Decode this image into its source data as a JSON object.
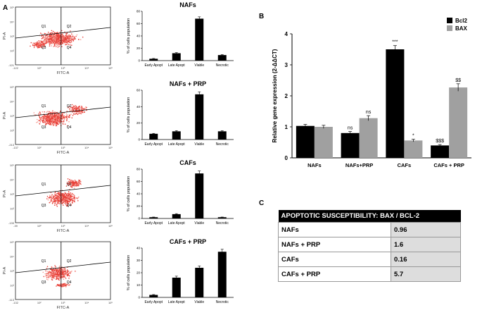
{
  "panel_labels": {
    "a": "A",
    "b": "B",
    "c": "C"
  },
  "flow_plots": [
    {
      "ylabel": "PI-A",
      "xlabel": "FITC-A",
      "quadrants": [
        "Q1",
        "Q2",
        "Q3",
        "Q4"
      ],
      "y_ticks": [
        "10⁵",
        "10⁴",
        "10³",
        "10²",
        "-121"
      ],
      "x_ticks": [
        "-122",
        "10²",
        "10³",
        "10⁴",
        "10⁵"
      ]
    },
    {
      "ylabel": "PI-A",
      "xlabel": "FITC-A",
      "quadrants": [
        "Q1",
        "Q2",
        "Q3",
        "Q4"
      ],
      "y_ticks": [
        "10⁵",
        "10⁴",
        "10³",
        "10²",
        "-213"
      ],
      "x_ticks": [
        "-137",
        "10²",
        "10³",
        "10⁴",
        "10⁵"
      ]
    },
    {
      "ylabel": "PI-A",
      "xlabel": "FITC-A",
      "quadrants": [
        "Q1",
        "Q2",
        "Q3",
        "Q4"
      ],
      "y_ticks": [
        "10⁵",
        "10⁴",
        "10³",
        "10²",
        "-139"
      ],
      "x_ticks": [
        "-39",
        "10²",
        "10³",
        "10⁴",
        "10⁵"
      ]
    },
    {
      "ylabel": "PI-A",
      "xlabel": "FITC-A",
      "quadrants": [
        "Q1",
        "Q2",
        "Q3",
        "Q4"
      ],
      "y_ticks": [
        "10⁵",
        "10⁴",
        "10³",
        "10²",
        "-113"
      ],
      "x_ticks": [
        "-132",
        "10²",
        "10³",
        "10⁴",
        "10⁵"
      ]
    }
  ],
  "chart_data": [
    {
      "type": "bar",
      "title": "NAFs",
      "ylabel": "% of cells population",
      "categories": [
        "Early Apopt",
        "Late Apopt",
        "Viable",
        "Necrotic"
      ],
      "values": [
        3,
        12,
        68,
        9
      ],
      "errors": [
        0.5,
        1,
        3,
        0.8
      ],
      "ylim": [
        0,
        80
      ],
      "yticks": [
        0,
        20,
        40,
        60,
        80
      ],
      "color": "#000000"
    },
    {
      "type": "bar",
      "title": "NAFs + PRP",
      "ylabel": "% of cells population",
      "categories": [
        "Early Apopt",
        "Late Apopt",
        "Viable",
        "Necrotic"
      ],
      "values": [
        7,
        10,
        55,
        10
      ],
      "errors": [
        0.5,
        0.8,
        3,
        0.8
      ],
      "ylim": [
        0,
        60
      ],
      "yticks": [
        0,
        20,
        40,
        60
      ],
      "color": "#000000"
    },
    {
      "type": "bar",
      "title": "CAFs",
      "ylabel": "% of cells population",
      "categories": [
        "Early Apopt",
        "Late Apopt",
        "Viable",
        "Necrotic"
      ],
      "values": [
        2,
        7,
        73,
        2
      ],
      "errors": [
        0.3,
        0.8,
        4,
        0.3
      ],
      "ylim": [
        0,
        80
      ],
      "yticks": [
        0,
        20,
        40,
        60,
        80
      ],
      "color": "#000000"
    },
    {
      "type": "bar",
      "title": "CAFs + PRP",
      "ylabel": "% of cells population",
      "categories": [
        "Early Apopt",
        "Late Apopt",
        "Viable",
        "Necrotic"
      ],
      "values": [
        2,
        16,
        24,
        37
      ],
      "errors": [
        0.3,
        1.2,
        1.5,
        2
      ],
      "ylim": [
        0,
        40
      ],
      "yticks": [
        0,
        10,
        20,
        30,
        40
      ],
      "color": "#000000"
    },
    {
      "type": "bar",
      "title": "",
      "ylabel": "Relative gene expression (2-ΔΔCT)",
      "categories": [
        "NAFs",
        "NAFs+PRP",
        "CAFs",
        "CAFs + PRP"
      ],
      "ylim": [
        0,
        4
      ],
      "yticks": [
        0,
        1,
        2,
        3,
        4
      ],
      "series": [
        {
          "name": "Bcl2",
          "color": "#000000",
          "values": [
            1.03,
            0.8,
            3.5,
            0.4
          ],
          "errors": [
            0.05,
            0.05,
            0.12,
            0.03
          ],
          "annotations": [
            "",
            "ns",
            "***",
            "$$$"
          ]
        },
        {
          "name": "BAX",
          "color": "#a0a0a0",
          "values": [
            1.0,
            1.28,
            0.56,
            2.27
          ],
          "errors": [
            0.05,
            0.08,
            0.04,
            0.12
          ],
          "annotations": [
            "",
            "ns",
            "*",
            "$$"
          ]
        }
      ],
      "legend": "top-right"
    }
  ],
  "table": {
    "header": "APOPTOTIC SUSCEPTIBILITY: BAX / BCL-2",
    "rows": [
      {
        "label": "NAFs",
        "value": "0.96"
      },
      {
        "label": "NAFs + PRP",
        "value": "1.6"
      },
      {
        "label": "CAFs",
        "value": "0.16"
      },
      {
        "label": "CAFs + PRP",
        "value": "5.7"
      }
    ]
  },
  "colors": {
    "scatter": "#e8413a",
    "scatter_light": "#f59a90",
    "bar": "#000000",
    "bax": "#a0a0a0",
    "table_header": "#000000",
    "table_value_bg": "#dddddd"
  }
}
